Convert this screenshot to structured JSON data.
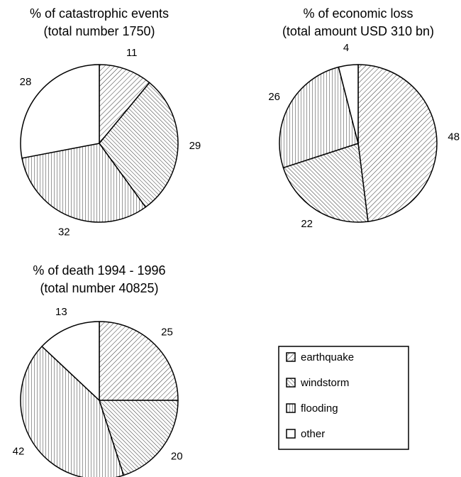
{
  "chart_data": [
    {
      "type": "pie",
      "title": "% of catastrophic events",
      "subtitle": "(total number 1750)",
      "values": [
        11,
        29,
        32,
        28
      ]
    },
    {
      "type": "pie",
      "title": "% of economic loss",
      "subtitle": "(total amount USD 310 bn)",
      "values": [
        48,
        22,
        26,
        4
      ]
    },
    {
      "type": "pie",
      "title": "% of death 1994 - 1996",
      "subtitle": "(total number 40825)",
      "values": [
        25,
        20,
        42,
        13
      ]
    }
  ],
  "legend": {
    "labels": [
      "earthquake",
      "windstorm",
      "flooding",
      "other"
    ],
    "hatches": [
      "diag-right",
      "diag-left",
      "vertical",
      "none"
    ]
  }
}
